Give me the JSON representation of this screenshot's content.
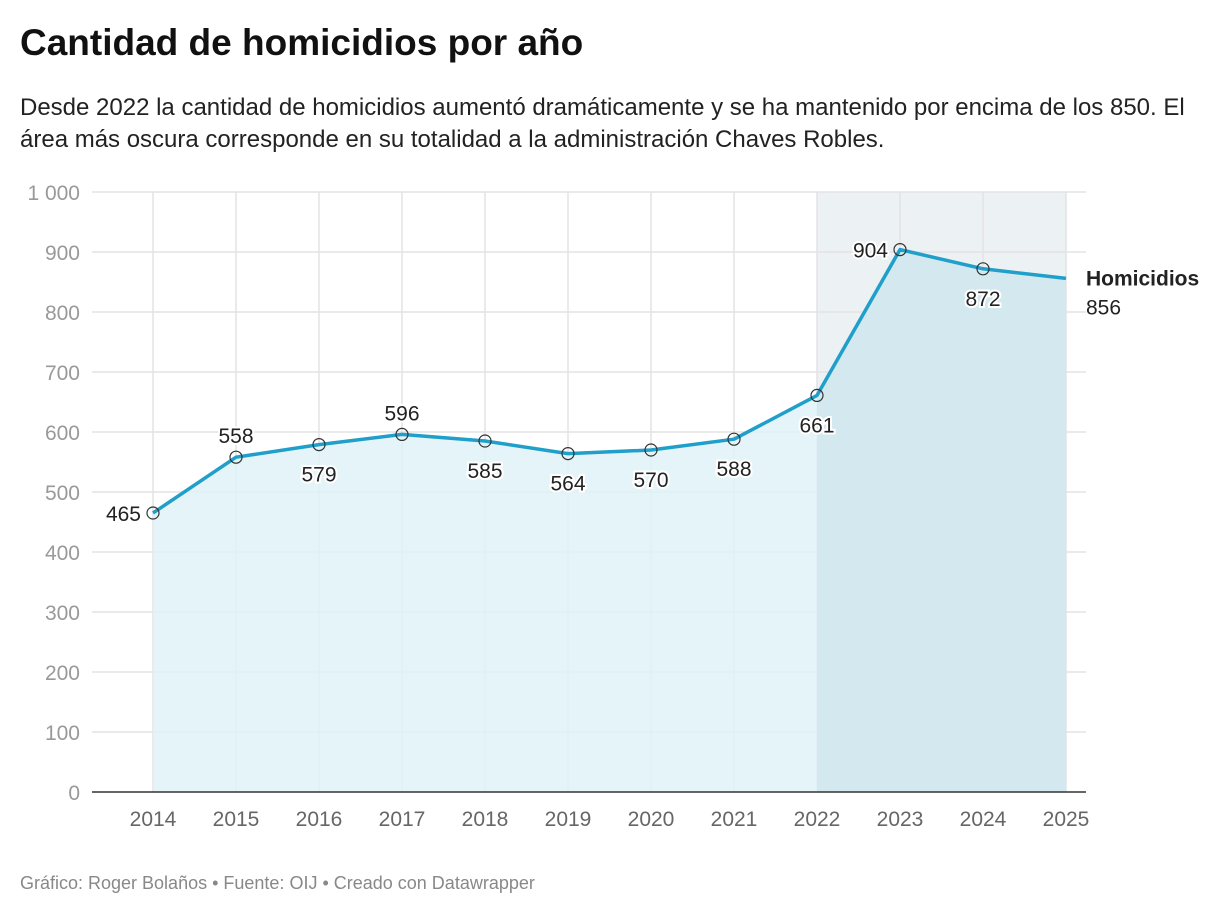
{
  "header": {
    "title": "Cantidad de homicidios por año",
    "subtitle": "Desde 2022 la cantidad de homicidios aumentó dramáticamente y se ha mantenido por encima de los 850. El área más oscura corresponde en su totalidad a la administración Chaves Robles."
  },
  "footer": "Gráfico: Roger Bolaños • Fuente: OIJ • Creado con Datawrapper",
  "chart_data": {
    "type": "area",
    "title": "Cantidad de homicidios por año",
    "xlabel": "",
    "ylabel": "",
    "x": [
      2014,
      2015,
      2016,
      2017,
      2018,
      2019,
      2020,
      2021,
      2022,
      2023,
      2024,
      2025
    ],
    "series": [
      {
        "name": "Homicidios",
        "values": [
          465,
          558,
          579,
          596,
          585,
          564,
          570,
          588,
          661,
          904,
          872,
          856
        ],
        "label_placement": [
          "left",
          "above",
          "below",
          "above",
          "below",
          "below",
          "below",
          "below",
          "below",
          "left",
          "below",
          "right"
        ]
      }
    ],
    "ylim": [
      0,
      1000
    ],
    "yticks": [
      0,
      100,
      200,
      300,
      400,
      500,
      600,
      700,
      800,
      900,
      1000
    ],
    "ytick_labels": [
      "0",
      "100",
      "200",
      "300",
      "400",
      "500",
      "600",
      "700",
      "800",
      "900",
      "1 000"
    ],
    "grid": true,
    "highlight_range": [
      2022,
      2025
    ],
    "colors": {
      "line": "#1f9fca",
      "area": "#e0f2f7",
      "highlight_bg": "#ecf1f4",
      "highlight_area": "#d3e8ef",
      "grid": "#e3e3e3",
      "tick": "#999999"
    }
  }
}
